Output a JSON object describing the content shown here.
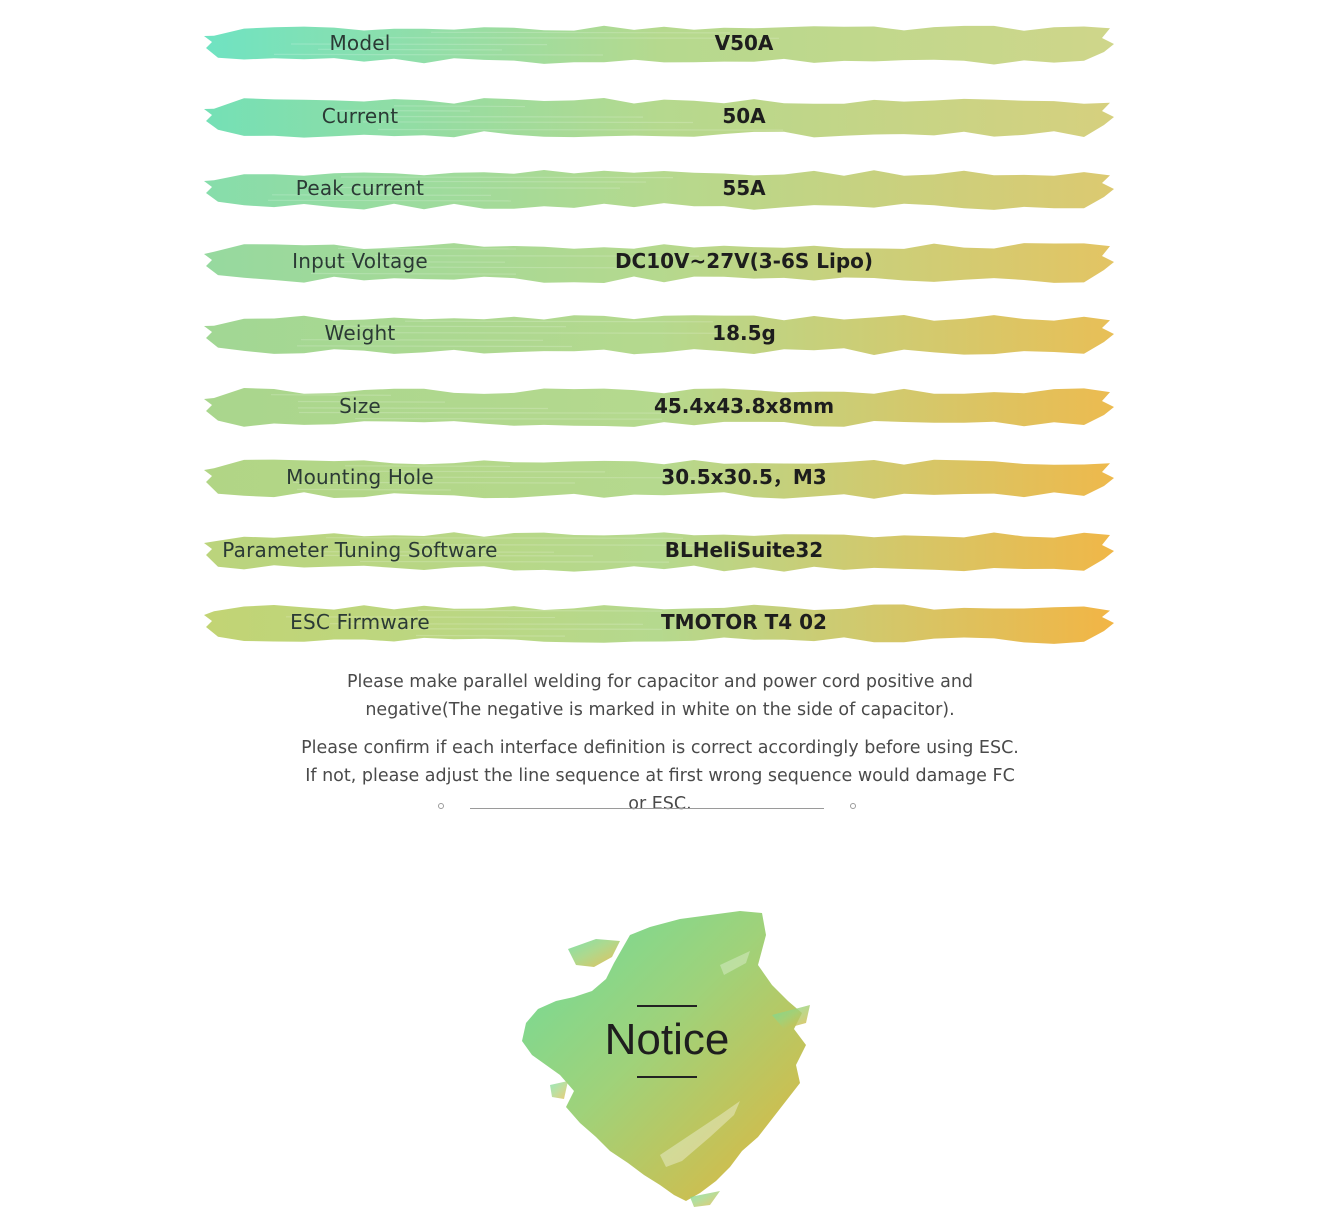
{
  "specs": [
    {
      "label": "Model",
      "value": "V50A"
    },
    {
      "label": "Current",
      "value": "50A"
    },
    {
      "label": "Peak current",
      "value": "55A"
    },
    {
      "label": "Input Voltage",
      "value": "DC10V~27V(3-6S Lipo)"
    },
    {
      "label": "Weight",
      "value": "18.5g"
    },
    {
      "label": "Size",
      "value": "45.4x43.8x8mm"
    },
    {
      "label": "Mounting Hole",
      "value": "30.5x30.5，M3"
    },
    {
      "label": "Parameter Tuning Software",
      "value": "BLHeliSuite32"
    },
    {
      "label": "ESC Firmware",
      "value": "TMOTOR T4 02"
    }
  ],
  "notes": {
    "note1": "Please make parallel welding for capacitor and power cord positive and negative(The negative is marked in white on the side of capacitor).",
    "note2": "Please confirm if each interface definition is correct accordingly before using ESC. If not, please adjust the line sequence at first wrong sequence would damage FC or ESC."
  },
  "notice": {
    "title": "Notice"
  },
  "colors": {
    "stroke_green": "#6fe3c2",
    "stroke_mid": "#b5d98e",
    "stroke_orange": "#f2b646",
    "text_dark": "#1d1d1d",
    "note_text": "#4a4a4a"
  }
}
